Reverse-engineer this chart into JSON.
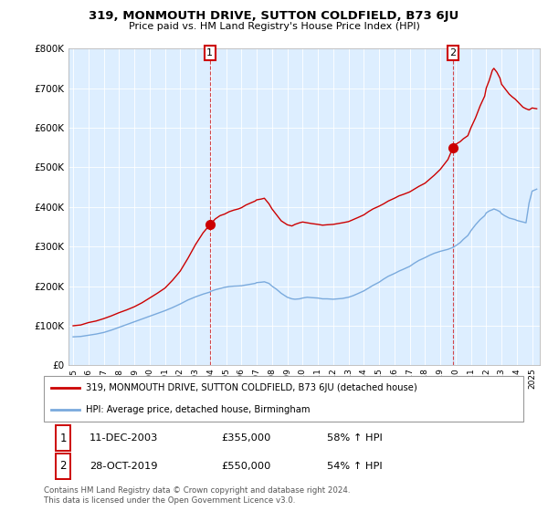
{
  "title": "319, MONMOUTH DRIVE, SUTTON COLDFIELD, B73 6JU",
  "subtitle": "Price paid vs. HM Land Registry's House Price Index (HPI)",
  "red_line_label": "319, MONMOUTH DRIVE, SUTTON COLDFIELD, B73 6JU (detached house)",
  "blue_line_label": "HPI: Average price, detached house, Birmingham",
  "annotation1_date": "11-DEC-2003",
  "annotation1_price": "£355,000",
  "annotation1_hpi": "58% ↑ HPI",
  "annotation2_date": "28-OCT-2019",
  "annotation2_price": "£550,000",
  "annotation2_hpi": "54% ↑ HPI",
  "footer": "Contains HM Land Registry data © Crown copyright and database right 2024.\nThis data is licensed under the Open Government Licence v3.0.",
  "red_color": "#cc0000",
  "blue_color": "#7aaadd",
  "bg_color": "#ffffff",
  "plot_bg_color": "#ddeeff",
  "grid_color": "#ffffff",
  "purchase1_x": 2003.94,
  "purchase1_y": 355000,
  "purchase2_x": 2019.83,
  "purchase2_y": 550000,
  "ylim": [
    0,
    800000
  ],
  "xlim": [
    1994.7,
    2025.5
  ],
  "xtick_years": [
    1995,
    1996,
    1997,
    1998,
    1999,
    2000,
    2001,
    2002,
    2003,
    2004,
    2005,
    2006,
    2007,
    2008,
    2009,
    2010,
    2011,
    2012,
    2013,
    2014,
    2015,
    2016,
    2017,
    2018,
    2019,
    2020,
    2021,
    2022,
    2023,
    2024,
    2025
  ]
}
